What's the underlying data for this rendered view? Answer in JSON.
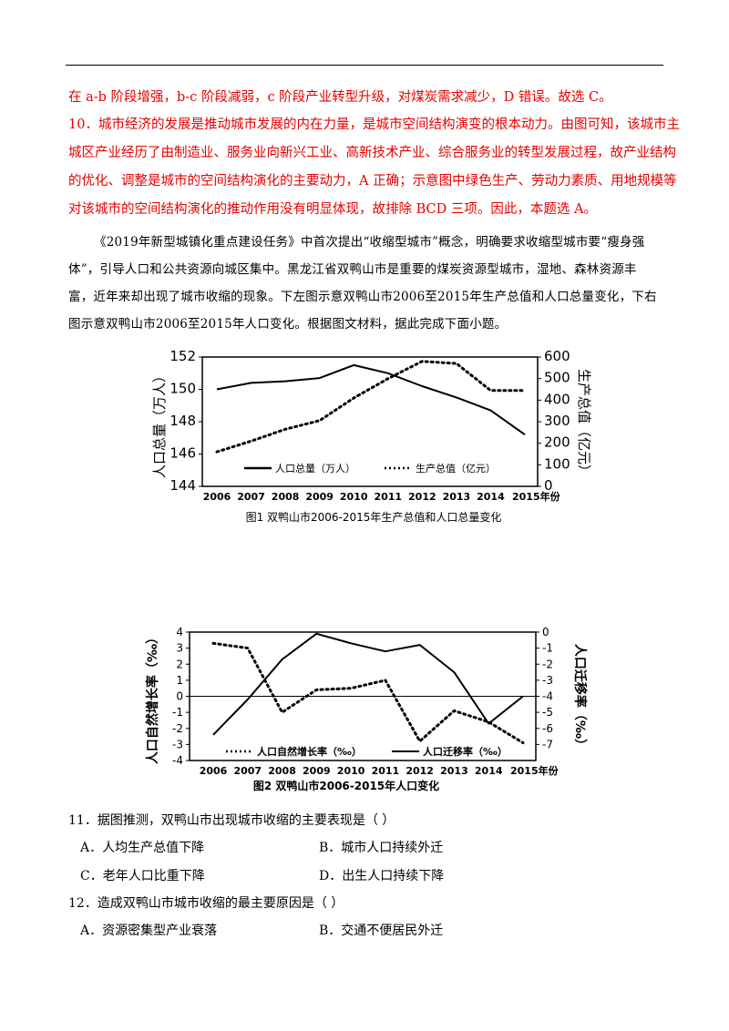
{
  "answer_block": {
    "line1": "在 a-b 阶段增强，b-c 阶段减弱，c 阶段产业转型升级，对煤炭需求减少，D 错误。故选 C。",
    "line2": "10．城市经济的发展是推动城市发展的内在力量，是城市空间结构演变的根本动力。由图可知，该城市主",
    "line3": "城区产业经历了由制造业、服务业向新兴工业、高新技术产业、综合服务业的转型发展过程，故产业结构",
    "line4": "的优化、调整是城市的空间结构演化的主要动力，A 正确；示意图中绿色生产、劳动力素质、用地规模等",
    "line5": "对该城市的空间结构演化的推动作用没有明显体现，故排除 BCD 三项。因此，本题选 A。"
  },
  "passage": "《2019年新型城镇化重点建设任务》中首次提出“收缩型城市”概念，明确要求收缩型城市要“瘦身强体”，引导人口和公共资源向城区集中。黑龙江省双鸭山市是重要的煤炭资源型城市，湿地、森林资源丰富，近年来却出现了城市收缩的现象。下左图示意双鸭山市2006至2015年生产总值和人口总量变化，下右图示意双鸭山市2006至2015年人口变化。根据图文材料，据此完成下面小题。",
  "chart_data": [
    {
      "type": "line",
      "title": "图1 双鸭山市2006-2015年生产总值和人口总量变化",
      "categories": [
        "2006",
        "2007",
        "2008",
        "2009",
        "2010",
        "2011",
        "2012",
        "2013",
        "2014",
        "2015年份"
      ],
      "x": [
        2006,
        2007,
        2008,
        2009,
        2010,
        2011,
        2012,
        2013,
        2014,
        2015
      ],
      "y_left": {
        "label": "人口总量（万人）",
        "ticks": [
          "144",
          "146",
          "148",
          "150",
          "152"
        ],
        "lim": [
          144,
          152
        ]
      },
      "y_right": {
        "label": "生产总值（亿元）",
        "ticks": [
          "0",
          "100",
          "200",
          "300",
          "400",
          "500",
          "600"
        ],
        "lim": [
          0,
          600
        ]
      },
      "series": [
        {
          "name": "人口总量（万人）",
          "axis": "left",
          "style": "solid",
          "values": [
            150.0,
            150.4,
            150.5,
            150.7,
            151.5,
            151.0,
            150.2,
            149.5,
            148.7,
            147.2
          ]
        },
        {
          "name": "生产总值（亿元）",
          "axis": "right",
          "style": "dotted",
          "values": [
            160,
            210,
            265,
            305,
            410,
            500,
            580,
            570,
            445,
            445
          ]
        }
      ],
      "grid": false,
      "legend": "bottom-inside"
    },
    {
      "type": "line",
      "title": "图2 双鸭山市2006-2015年人口变化",
      "categories": [
        "2006",
        "2007",
        "2008",
        "2009",
        "2010",
        "2011",
        "2012",
        "2013",
        "2014",
        "2015年份"
      ],
      "x": [
        2006,
        2007,
        2008,
        2009,
        2010,
        2011,
        2012,
        2013,
        2014,
        2015
      ],
      "y_left": {
        "label": "人口自然增长率（‰）",
        "ticks": [
          "4",
          "3",
          "2",
          "1",
          "0",
          "-1",
          "-2",
          "-3",
          "-4"
        ],
        "lim": [
          -4,
          4
        ]
      },
      "y_right": {
        "label": "人口迁移率（‰）",
        "ticks": [
          "0",
          "-1",
          "-2",
          "-3",
          "-4",
          "-5",
          "-6",
          "-7"
        ],
        "lim": [
          -8,
          0
        ]
      },
      "series": [
        {
          "name": "人口自然增长率（‰）",
          "axis": "left",
          "style": "dotted",
          "values": [
            3.3,
            3.0,
            -1.0,
            0.4,
            0.5,
            1.0,
            -2.8,
            -0.9,
            -1.6,
            -2.9
          ]
        },
        {
          "name": "人口迁移率（‰）",
          "axis": "right",
          "style": "solid",
          "values": [
            -6.4,
            -4.2,
            -1.7,
            -0.1,
            -0.7,
            -1.2,
            -0.8,
            -2.5,
            -5.7,
            -4.0
          ]
        }
      ],
      "grid": false,
      "legend": "bottom-inside"
    }
  ],
  "questions": [
    {
      "stem": "11．据图推测，双鸭山市出现城市收缩的主要表现是（    ）",
      "options": [
        "A．人均生产总值下降",
        "B．城市人口持续外迁",
        "C．老年人口比重下降",
        "D．出生人口持续下降"
      ]
    },
    {
      "stem": "12．造成双鸭山市城市收缩的最主要原因是（    ）",
      "options": [
        "A．资源密集型产业衰落",
        "B．交通不便居民外迁"
      ]
    }
  ]
}
